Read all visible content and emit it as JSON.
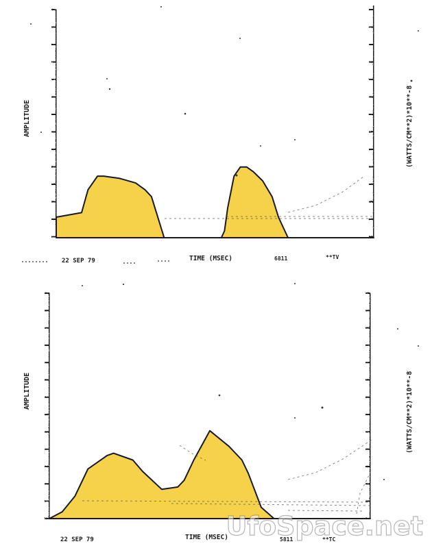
{
  "figure": {
    "fill_color": "#F5D24A",
    "line_color": "#1a1a1a",
    "watermark": "UfoSpace.net"
  },
  "chart_data": [
    {
      "type": "area",
      "ylabel": "AMPLITUDE",
      "ylabel_right": "(WATTS/CM**2)*10**-8",
      "xlabel": "TIME (MSEC)",
      "date_label": "22 SEP 79",
      "footer_marks": [
        "6811",
        "**TV"
      ],
      "grid": false,
      "series": [
        {
          "x": [
            0,
            0.08,
            0.1,
            0.13,
            0.15,
            0.2,
            0.25,
            0.28,
            0.3,
            0.34,
            0.38,
            0.42,
            0.47,
            0.52,
            0.53,
            0.54,
            0.56,
            0.58,
            0.6,
            0.62,
            0.65,
            0.68,
            0.7,
            0.73,
            0.76,
            0.8,
            0.85,
            0.9,
            0.95,
            1.0
          ],
          "values": [
            0.09,
            0.11,
            0.21,
            0.27,
            0.27,
            0.26,
            0.24,
            0.21,
            0.18,
            0.0,
            0.0,
            0.0,
            0.0,
            0.0,
            0.03,
            0.13,
            0.27,
            0.31,
            0.31,
            0.29,
            0.25,
            0.18,
            0.09,
            0.0,
            0.0,
            0.0,
            0.0,
            0.0,
            0.0,
            0.0
          ]
        }
      ]
    },
    {
      "type": "area",
      "ylabel": "AMPLITUDE",
      "ylabel_right": "(WATTS/CM**2)*10**-8",
      "xlabel": "TIME (MSEC)",
      "date_label": "22 SEP 79",
      "footer_marks": [
        "5811",
        "**TC"
      ],
      "grid": false,
      "series": [
        {
          "x": [
            0,
            0.04,
            0.08,
            0.12,
            0.18,
            0.2,
            0.26,
            0.29,
            0.35,
            0.4,
            0.42,
            0.45,
            0.5,
            0.56,
            0.6,
            0.62,
            0.66,
            0.7,
            0.73,
            0.76,
            0.8,
            0.85,
            0.9,
            0.95,
            1.0
          ],
          "values": [
            0.0,
            0.03,
            0.1,
            0.22,
            0.28,
            0.29,
            0.26,
            0.21,
            0.13,
            0.14,
            0.17,
            0.26,
            0.39,
            0.32,
            0.26,
            0.2,
            0.05,
            0.0,
            0.0,
            0.0,
            0.0,
            0.0,
            0.0,
            0.0,
            0.0
          ]
        }
      ]
    }
  ]
}
